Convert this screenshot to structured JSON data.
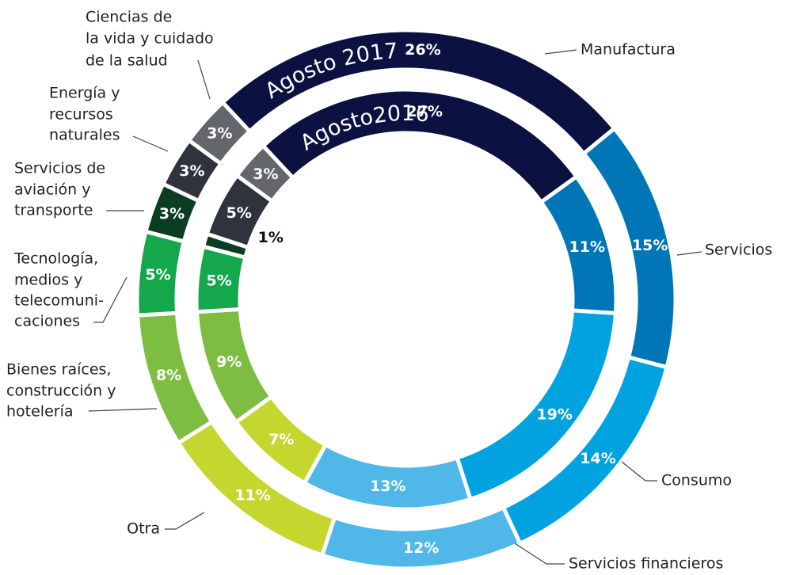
{
  "chart_data": {
    "type": "donut",
    "categories": [
      [
        "Manufactura"
      ],
      [
        "Servicios"
      ],
      [
        "Consumo"
      ],
      [
        "Servicios financieros"
      ],
      [
        "Otra"
      ],
      [
        "Bienes raíces,",
        "construcción y",
        "hotelería"
      ],
      [
        "Tecnología,",
        "medios y",
        "telecomuni-",
        "caciones"
      ],
      [
        "Servicios de",
        "aviación y",
        "transporte"
      ],
      [
        "Energía y",
        "recursos",
        "naturales"
      ],
      [
        "Ciencias de",
        "la vida y cuidado",
        "de la salud"
      ]
    ],
    "colors": [
      "#0b1140",
      "#0076b6",
      "#00a3e0",
      "#4fb8e8",
      "#c5d72f",
      "#7dbd41",
      "#14a74b",
      "#0a3d22",
      "#2e333e",
      "#63666b"
    ],
    "series": [
      {
        "name": "Agosto 2017",
        "values": [
          26,
          15,
          14,
          12,
          11,
          8,
          5,
          3,
          3,
          3
        ],
        "value_labels": [
          "26%",
          "15%",
          "14%",
          "12%",
          "11%",
          "8%",
          "5%",
          "3%",
          "3%",
          "3%"
        ]
      },
      {
        "name": "Agosto2016",
        "values": [
          27,
          11,
          19,
          13,
          7,
          9,
          5,
          1,
          5,
          3
        ],
        "value_labels": [
          "27%",
          "11%",
          "19%",
          "13%",
          "7%",
          "9%",
          "5%",
          "1%",
          "5%",
          "3%"
        ]
      }
    ]
  }
}
